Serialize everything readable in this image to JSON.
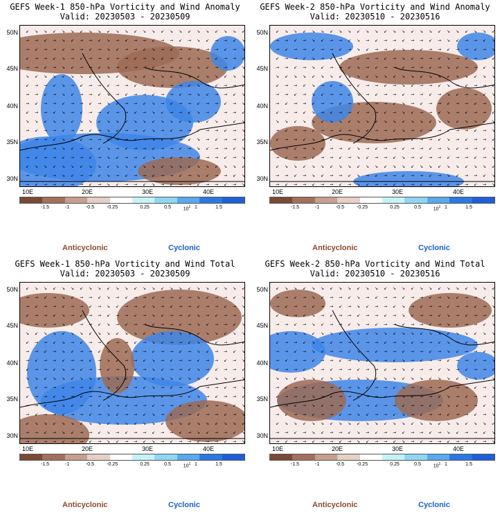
{
  "panels": [
    {
      "id": "tl",
      "title": "GEFS Week-1 850-hPa Vorticity and Wind Anomaly",
      "valid": "Valid: 20230503 - 20230509"
    },
    {
      "id": "tr",
      "title": "GEFS Week-2 850-hPa Vorticity and Wind Anomaly",
      "valid": "Valid: 20230510 - 20230516"
    },
    {
      "id": "bl",
      "title": "GEFS Week-1 850-hPa Vorticity and Wind Total",
      "valid": "Valid: 20230503 - 20230509"
    },
    {
      "id": "br",
      "title": "GEFS Week-2 850-hPa Vorticity and Wind Total",
      "valid": "Valid: 20230510 - 20230516"
    }
  ],
  "lat_labels": [
    "50N",
    "45N",
    "40N",
    "35N",
    "30N"
  ],
  "lon_labels": [
    "10E",
    "20E",
    "30E",
    "40E"
  ],
  "colorbar": {
    "colors": [
      "#7a4a36",
      "#a3705b",
      "#c79f8d",
      "#e6cfc4",
      "#ffffff",
      "#c6f2f7",
      "#8fd6f2",
      "#5aa9ee",
      "#2a78e2",
      "#1f5fd8"
    ],
    "labels": [
      "-1.5",
      "-1",
      "-0.5",
      "-0.25",
      "0.25",
      "0.5",
      "1",
      "1.5"
    ],
    "units_mark": "10",
    "units_exp": "1"
  },
  "legend": {
    "anticyclonic": "Anticyclonic",
    "cyclonic": "Cyclonic"
  },
  "colors": {
    "anticyclonic": "#8b4a2c",
    "cyclonic": "#1a5fd0",
    "map_blue": "#3f86e8",
    "map_brown": "#9c6b55"
  }
}
